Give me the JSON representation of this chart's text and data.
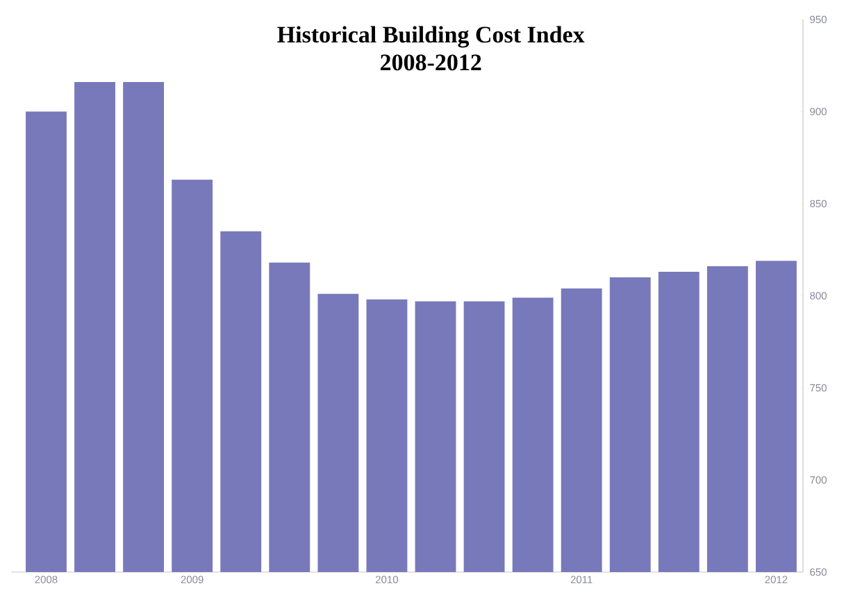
{
  "chart_data": {
    "type": "bar",
    "title": "Historical Building Cost Index",
    "subtitle": "2008-2012",
    "categories": [
      "2008",
      null,
      null,
      "2009",
      null,
      null,
      null,
      "2010",
      null,
      null,
      null,
      "2011",
      null,
      null,
      null,
      "2012"
    ],
    "values": [
      900,
      916,
      916,
      863,
      835,
      818,
      801,
      798,
      797,
      797,
      799,
      804,
      810,
      813,
      816,
      819
    ],
    "color": "#7879bb",
    "ylim": [
      650,
      950
    ],
    "yticks": [
      650,
      700,
      750,
      800,
      850,
      900,
      950
    ],
    "grid": false
  }
}
